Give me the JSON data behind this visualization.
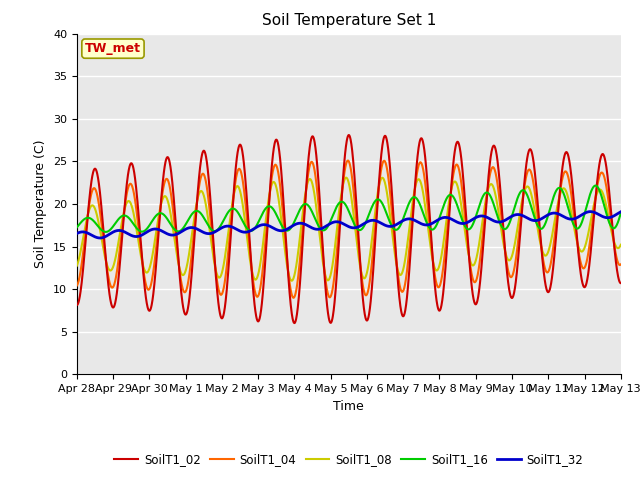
{
  "title": "Soil Temperature Set 1",
  "xlabel": "Time",
  "ylabel": "Soil Temperature (C)",
  "ylim": [
    0,
    40
  ],
  "annotation": "TW_met",
  "bg_color": "#e8e8e8",
  "legend": [
    "SoilT1_02",
    "SoilT1_04",
    "SoilT1_08",
    "SoilT1_16",
    "SoilT1_32"
  ],
  "colors": [
    "#cc0000",
    "#ff6600",
    "#cccc00",
    "#00cc00",
    "#0000cc"
  ],
  "xtick_labels": [
    "Apr 28",
    "Apr 29",
    "Apr 30",
    "May 1",
    "May 2",
    "May 3",
    "May 4",
    "May 5",
    "May 6",
    "May 7",
    "May 8",
    "May 9",
    "May 10",
    "May 11",
    "May 12",
    "May 13"
  ],
  "linewidths": [
    1.5,
    1.5,
    1.5,
    1.5,
    2.0
  ],
  "title_fontsize": 11,
  "label_fontsize": 9,
  "tick_fontsize": 8
}
